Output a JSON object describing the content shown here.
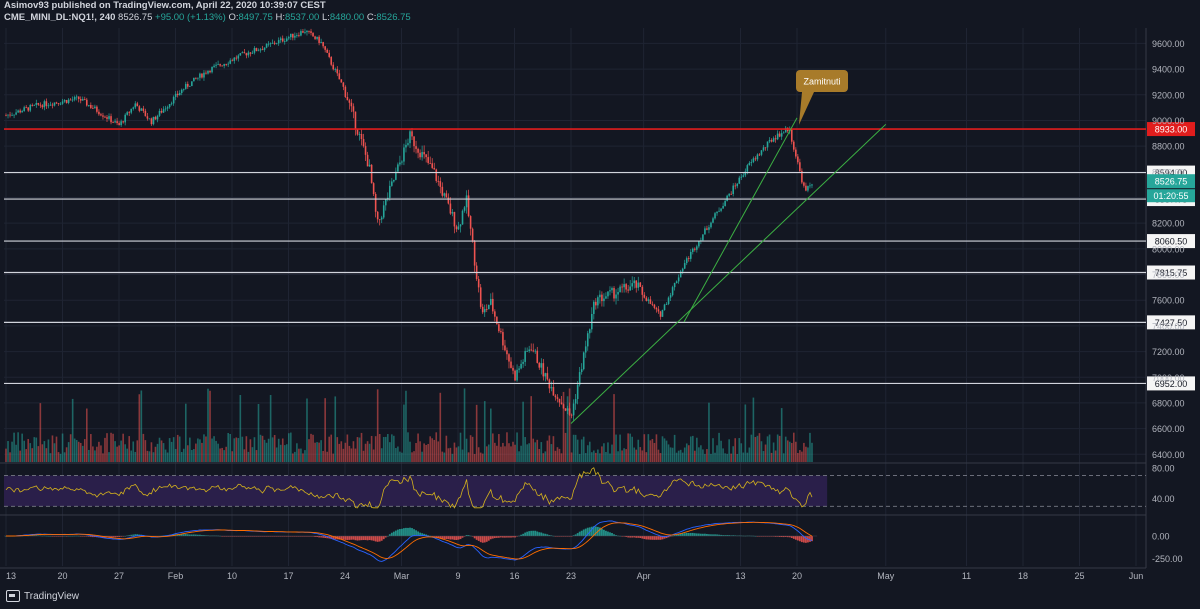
{
  "header": {
    "publisher_line": "Asimov93 published on TradingView.com, April 22, 2020 10:39:07 CEST",
    "symbol": "CME_MINI_DL:NQ1!, 240",
    "last": "8526.75",
    "change": "+95.00 (+1.13%)",
    "open_label": "O:",
    "open": "8497.75",
    "high_label": "H:",
    "high": "8537.00",
    "low_label": "L:",
    "low": "8480.00",
    "close_label": "C:",
    "close": "8526.75"
  },
  "footer": {
    "brand": "TradingView"
  },
  "colors": {
    "background": "#131722",
    "up": "#26a69a",
    "down": "#ef5350",
    "resistance": "#e11d1d",
    "support": "#d1d4dc",
    "trendline": "#3cb043",
    "rsi": "#d4b21d",
    "rsi_band": "#2a1f4a",
    "callout": "#a87b2a"
  },
  "chart_data": {
    "type": "candlestick",
    "x_ticks": [
      "13",
      "20",
      "27",
      "Feb",
      "10",
      "17",
      "24",
      "Mar",
      "9",
      "16",
      "23",
      "Apr",
      "13",
      "20",
      "May",
      "11",
      "18",
      "25",
      "Jun"
    ],
    "y_ticks": [
      6400,
      6600,
      6800,
      7000,
      7200,
      7400,
      7600,
      7800,
      8000,
      8200,
      8400,
      8600,
      8800,
      9000,
      9200,
      9400,
      9600
    ],
    "y_tick_labels": [
      "6400.00",
      "6600.00",
      "6800.00",
      "7000.00",
      "7200.00",
      "7400.00",
      "7600.00",
      "7800.00",
      "8000.00",
      "8200.00",
      "8400.00",
      "8600.00",
      "8800.00",
      "9000.00",
      "9200.00",
      "9400.00",
      "9600.00"
    ],
    "ylim": [
      6340,
      9720
    ],
    "price_path": [
      [
        "2020-01-13",
        9040
      ],
      [
        "2020-01-17",
        9120
      ],
      [
        "2020-01-22",
        9170
      ],
      [
        "2020-01-24",
        9090
      ],
      [
        "2020-01-27",
        8960
      ],
      [
        "2020-01-29",
        9130
      ],
      [
        "2020-01-31",
        8990
      ],
      [
        "2020-02-04",
        9250
      ],
      [
        "2020-02-07",
        9390
      ],
      [
        "2020-02-12",
        9530
      ],
      [
        "2020-02-14",
        9570
      ],
      [
        "2020-02-19",
        9700
      ],
      [
        "2020-02-21",
        9610
      ],
      [
        "2020-02-24",
        9230
      ],
      [
        "2020-02-27",
        8640
      ],
      [
        "2020-02-28",
        8180
      ],
      [
        "2020-03-03",
        8880
      ],
      [
        "2020-03-06",
        8600
      ],
      [
        "2020-03-09",
        8150
      ],
      [
        "2020-03-10",
        8400
      ],
      [
        "2020-03-12",
        7480
      ],
      [
        "2020-03-13",
        7590
      ],
      [
        "2020-03-16",
        7000
      ],
      [
        "2020-03-18",
        7250
      ],
      [
        "2020-03-20",
        6980
      ],
      [
        "2020-03-23",
        6690
      ],
      [
        "2020-03-26",
        7600
      ],
      [
        "2020-03-31",
        7720
      ],
      [
        "2020-04-03",
        7480
      ],
      [
        "2020-04-06",
        7880
      ],
      [
        "2020-04-09",
        8180
      ],
      [
        "2020-04-14",
        8650
      ],
      [
        "2020-04-17",
        8860
      ],
      [
        "2020-04-19",
        8940
      ],
      [
        "2020-04-21",
        8440
      ],
      [
        "2020-04-22",
        8526.75
      ]
    ],
    "horizontal_levels": [
      {
        "value": 8933.0,
        "label": "8933.00",
        "role": "resistance"
      },
      {
        "value": 8594.0,
        "label": "8594.00",
        "role": "support"
      },
      {
        "value": 8387.75,
        "label": "8387.75",
        "role": "support"
      },
      {
        "value": 8060.5,
        "label": "8060.50",
        "role": "support"
      },
      {
        "value": 7815.75,
        "label": "7815.75",
        "role": "support"
      },
      {
        "value": 7427.5,
        "label": "7427.50",
        "role": "support"
      },
      {
        "value": 6952.0,
        "label": "6952.00",
        "role": "support"
      }
    ],
    "last_price_label": "8526.75",
    "countdown_label": "01:20:55",
    "trendlines": [
      {
        "from": [
          "2020-03-23",
          6640
        ],
        "to": [
          "2020-05-01",
          8970
        ]
      },
      {
        "from": [
          "2020-04-06",
          7430
        ],
        "to": [
          "2020-04-20",
          9020
        ]
      }
    ],
    "annotation": {
      "text": "Zamitnuti",
      "date": "2020-04-19",
      "value": 8950
    },
    "rsi": {
      "levels": [
        70,
        30
      ],
      "tick_labels": [
        "80.00",
        "40.00"
      ],
      "last": 42
    },
    "macd": {
      "tick_labels": [
        "0.00",
        "-250.00"
      ]
    }
  }
}
